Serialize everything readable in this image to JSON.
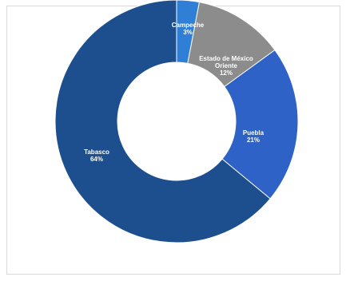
{
  "chart_data": {
    "type": "pie",
    "subtype": "donut",
    "slices": [
      {
        "label": "Campeche",
        "value": 3,
        "value_label": "3%",
        "color": "#2f7fd6"
      },
      {
        "label_lines": [
          "Estado de México",
          "Oriente"
        ],
        "label": "Estado de México Oriente",
        "value": 12,
        "value_label": "12%",
        "color": "#8c8c8c"
      },
      {
        "label": "Puebla",
        "value": 21,
        "value_label": "21%",
        "color": "#2f62c6"
      },
      {
        "label": "Tabasco",
        "value": 64,
        "value_label": "64%",
        "color": "#1d4f8f"
      }
    ],
    "start_angle_deg": 0,
    "direction": "clockwise",
    "legend": "none",
    "data_labels": "inside"
  }
}
